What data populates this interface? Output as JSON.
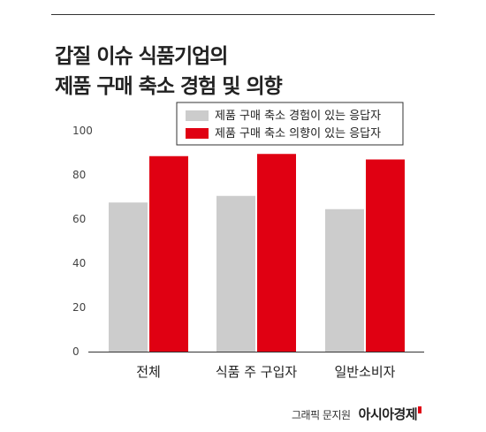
{
  "title_lines": [
    "갑질 이슈 식품기업의",
    "제품 구매 축소 경험 및 의향"
  ],
  "credit": {
    "text": "그래픽 문지원",
    "logo": "아시아경제"
  },
  "colors": {
    "series1": "#cccccc",
    "series2": "#e00012",
    "axis": "#333333",
    "grid": "#bbbbbb"
  },
  "chart_data": {
    "type": "bar",
    "title": "갑질 이슈 식품기업의 제품 구매 축소 경험 및 의향",
    "categories": [
      "전체",
      "식품 주 구입자",
      "일반소비자"
    ],
    "series": [
      {
        "name": "제품 구매 축소 경험이 있는 응답자",
        "values": [
          67.5,
          70.5,
          64.5
        ]
      },
      {
        "name": "제품 구매 축소 의향이 있는 응답자",
        "values": [
          88.5,
          89.5,
          87
        ]
      }
    ],
    "yticks": [
      0,
      20,
      40,
      60,
      80,
      100
    ],
    "ylim": [
      0,
      100
    ],
    "legend": "top-right",
    "grid": false
  }
}
